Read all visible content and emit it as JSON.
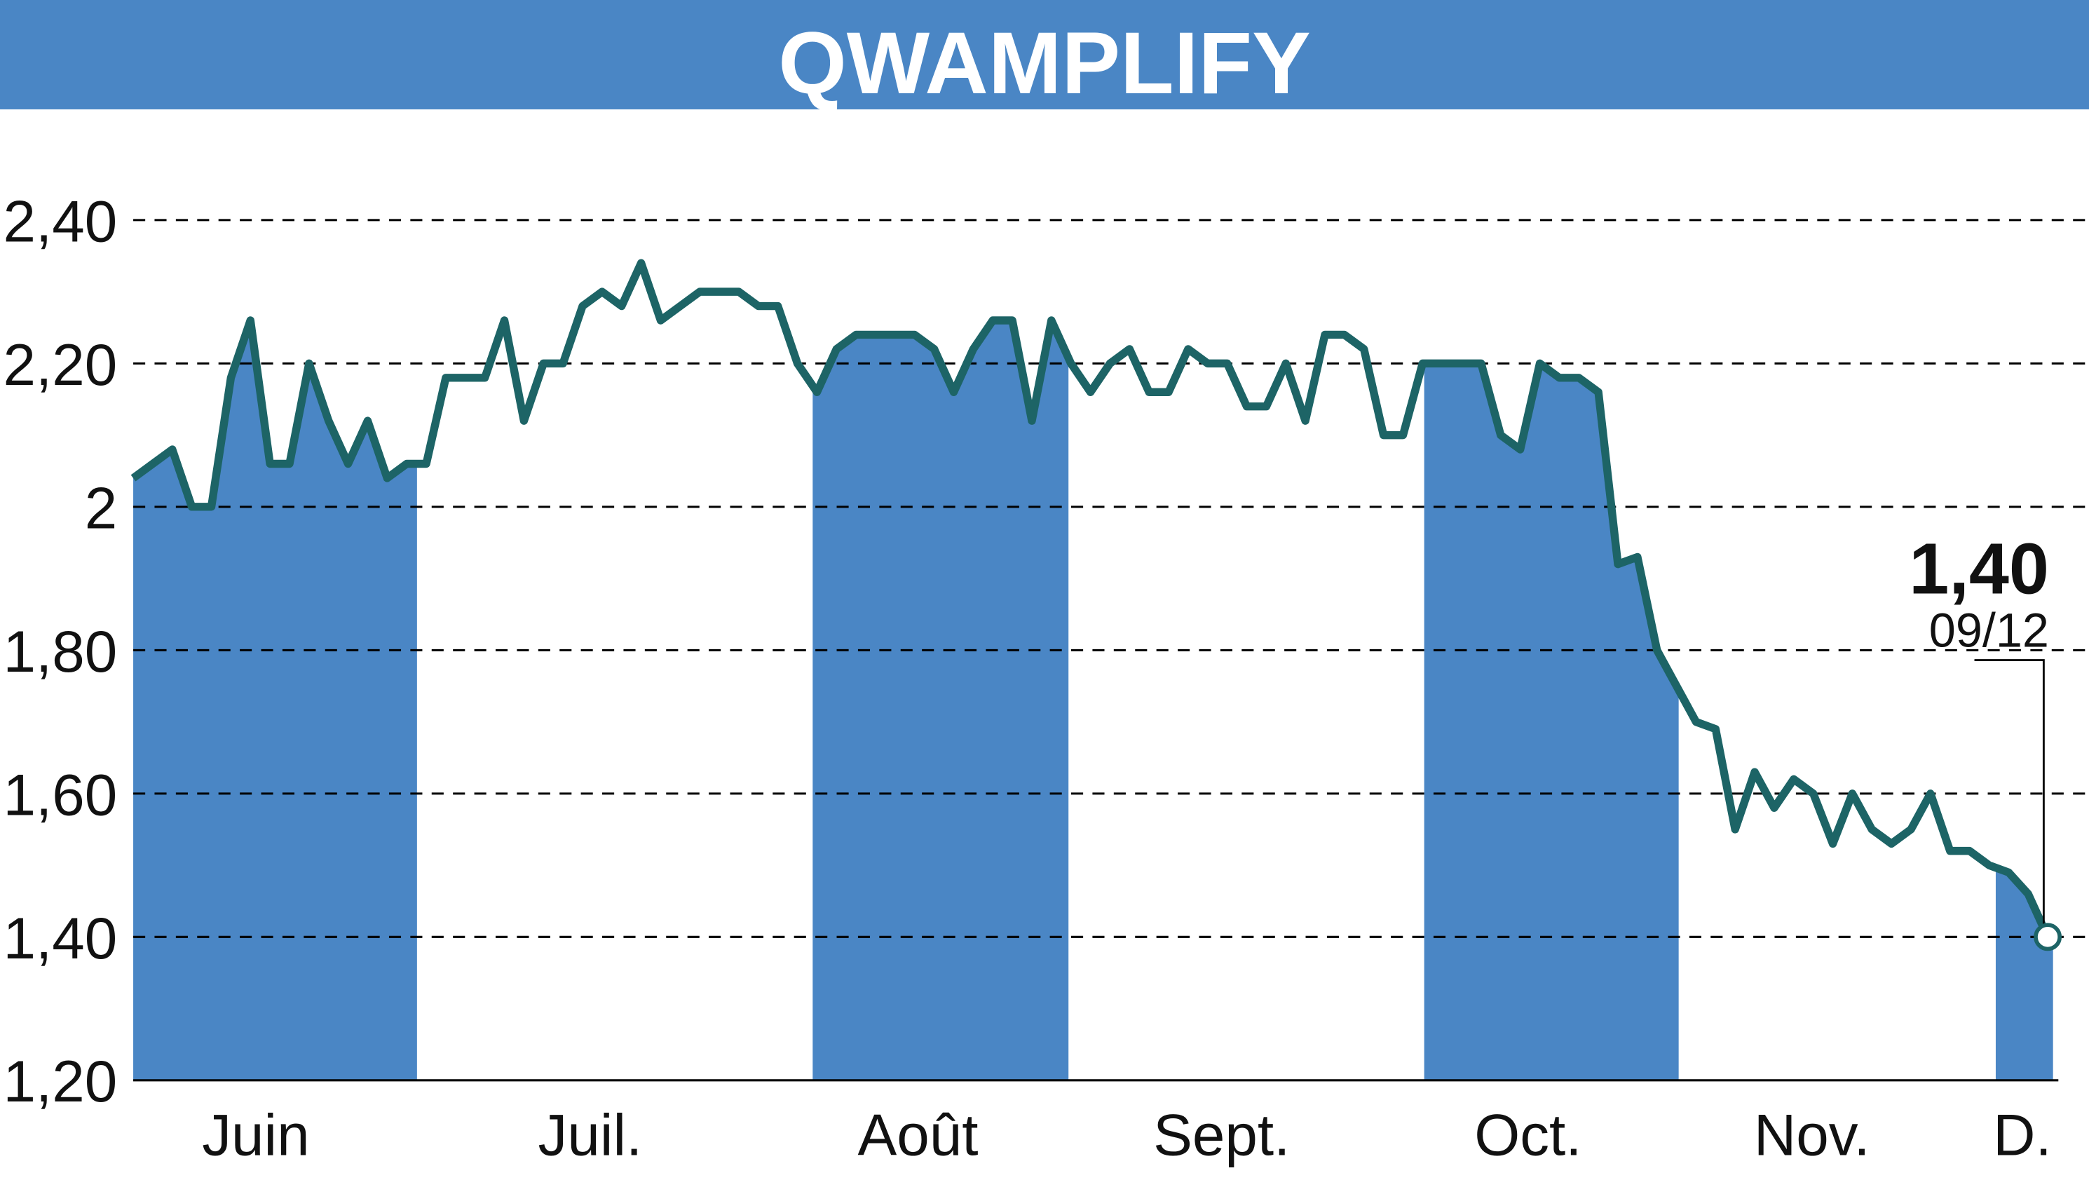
{
  "chart_data": {
    "type": "line",
    "title": "QWAMPLIFY",
    "ylim": [
      1.2,
      2.4
    ],
    "yticks": [
      "1,20",
      "1,40",
      "1,60",
      "1,80",
      "2",
      "2,20",
      "2,40"
    ],
    "ytick_values": [
      1.2,
      1.4,
      1.6,
      1.8,
      2.0,
      2.2,
      2.4
    ],
    "xticks": [
      "Juin",
      "Juil.",
      "Août",
      "Sept.",
      "Oct.",
      "Nov.",
      "D."
    ],
    "grid": true,
    "colors": {
      "header": "#4a86c5",
      "band": "#4a86c5",
      "line": "#1d6466",
      "grid": "#000000"
    },
    "values": [
      2.04,
      2.06,
      2.08,
      2.0,
      2.0,
      2.18,
      2.26,
      2.06,
      2.06,
      2.2,
      2.12,
      2.06,
      2.12,
      2.04,
      2.06,
      2.06,
      2.18,
      2.18,
      2.18,
      2.26,
      2.12,
      2.2,
      2.2,
      2.28,
      2.3,
      2.28,
      2.34,
      2.26,
      2.28,
      2.3,
      2.3,
      2.3,
      2.28,
      2.28,
      2.2,
      2.16,
      2.22,
      2.24,
      2.24,
      2.24,
      2.24,
      2.22,
      2.16,
      2.22,
      2.26,
      2.26,
      2.12,
      2.26,
      2.2,
      2.16,
      2.2,
      2.22,
      2.16,
      2.16,
      2.22,
      2.2,
      2.2,
      2.14,
      2.14,
      2.2,
      2.12,
      2.24,
      2.24,
      2.22,
      2.1,
      2.1,
      2.2,
      2.2,
      2.2,
      2.2,
      2.1,
      2.08,
      2.2,
      2.18,
      2.18,
      2.16,
      1.92,
      1.93,
      1.8,
      1.75,
      1.7,
      1.69,
      1.55,
      1.63,
      1.58,
      1.62,
      1.6,
      1.53,
      1.6,
      1.55,
      1.53,
      1.55,
      1.6,
      1.52,
      1.52,
      1.5,
      1.49,
      1.46,
      1.4
    ],
    "last_value_label": "1,40",
    "last_date_label": "09/12"
  }
}
